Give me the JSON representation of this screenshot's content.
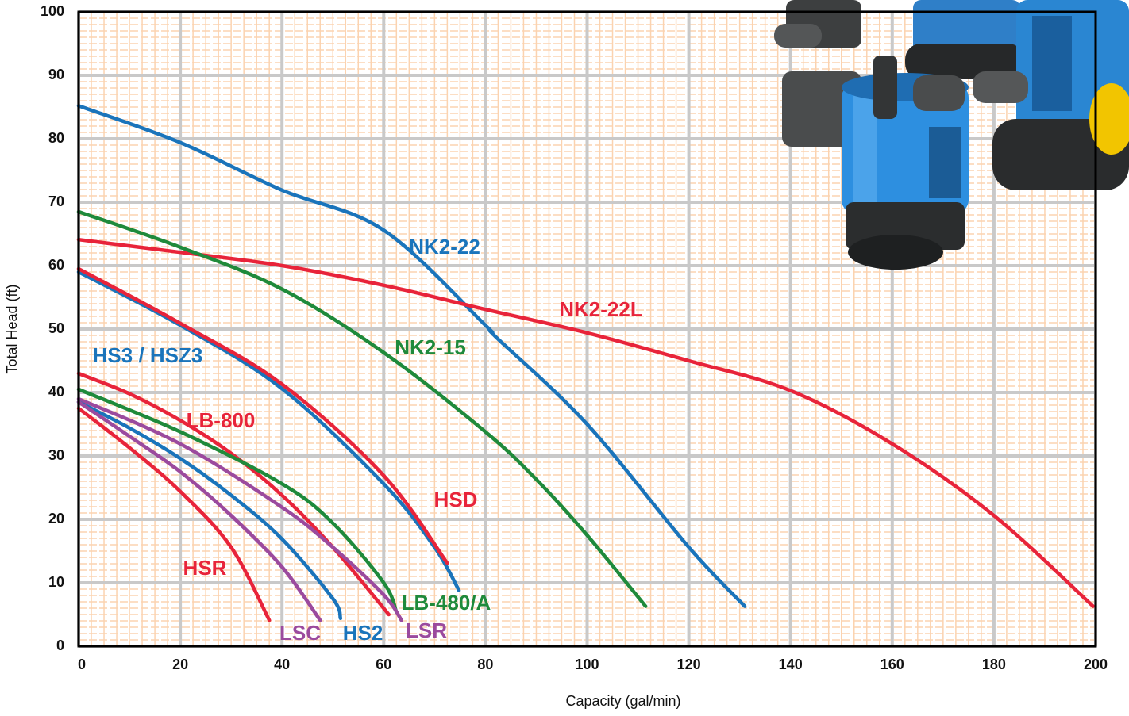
{
  "chart_data": {
    "type": "line",
    "x_label": "Capacity (gal/min)",
    "y_label": "Total Head (ft)",
    "xlim": [
      0,
      200
    ],
    "ylim": [
      0,
      100
    ],
    "xticks": [
      0,
      20,
      40,
      60,
      80,
      100,
      120,
      140,
      160,
      180,
      200
    ],
    "yticks": [
      0,
      10,
      20,
      30,
      40,
      50,
      60,
      70,
      80,
      90,
      100
    ],
    "grid": true,
    "series": [
      {
        "name": "NK2-22",
        "color": "#1a74bb",
        "x": [
          0,
          20,
          40,
          60,
          80,
          82,
          100,
          120,
          131
        ],
        "values": [
          85.2,
          79.4,
          71.9,
          65.6,
          50.6,
          48.8,
          35,
          15.6,
          6.3
        ]
      },
      {
        "name": "NK2-22L",
        "color": "#e8243a",
        "x": [
          0,
          20,
          40,
          60,
          80,
          100,
          120,
          140,
          160,
          180,
          199.5
        ],
        "values": [
          64.1,
          62.1,
          60,
          56.9,
          53.1,
          49.4,
          45,
          40.3,
          31.9,
          20.6,
          6.3
        ]
      },
      {
        "name": "NK2-15",
        "color": "#1f8a3b",
        "x": [
          0,
          20,
          40,
          60,
          80,
          90,
          100,
          111.5
        ],
        "values": [
          68.5,
          62.9,
          56.3,
          46.3,
          33.8,
          26.3,
          17.5,
          6.3
        ]
      },
      {
        "name": "HS3 / HSZ3",
        "color": "#1a74bb",
        "x": [
          0,
          20,
          40,
          60,
          70,
          74.8
        ],
        "values": [
          59,
          50.6,
          40.6,
          25.6,
          15.6,
          8.8
        ]
      },
      {
        "name": "LB-800",
        "color": "#e8243a",
        "x": [
          0,
          20,
          40,
          60,
          72.5
        ],
        "values": [
          59.5,
          50.9,
          41.3,
          26.9,
          13.1
        ]
      },
      {
        "name": "HSD",
        "color": "#e8243a",
        "x": [
          0,
          10,
          20,
          30,
          40,
          50,
          61
        ],
        "values": [
          43,
          39.8,
          35.6,
          30.4,
          23.8,
          15.6,
          5
        ]
      },
      {
        "name": "LB-480/A",
        "color": "#1f8a3b",
        "x": [
          0,
          20,
          40,
          50,
          60,
          62.5
        ],
        "values": [
          40.5,
          33.8,
          25.6,
          19.4,
          10,
          5.4
        ]
      },
      {
        "name": "LSR",
        "color": "#9b4a9e",
        "x": [
          0,
          20,
          40,
          50,
          60,
          63.5
        ],
        "values": [
          39,
          31.9,
          21.9,
          15.6,
          8.1,
          4.1
        ]
      },
      {
        "name": "HS2",
        "color": "#1a74bb",
        "x": [
          0,
          10,
          20,
          30,
          40,
          50,
          51.5
        ],
        "values": [
          38.5,
          34.4,
          29.6,
          23.8,
          16.9,
          7.5,
          4.4
        ]
      },
      {
        "name": "LSC",
        "color": "#9b4a9e",
        "x": [
          0,
          10,
          20,
          30,
          40,
          47.5
        ],
        "values": [
          38.5,
          33.1,
          27.5,
          20.6,
          12.5,
          4.1
        ]
      },
      {
        "name": "HSR",
        "color": "#e8243a",
        "x": [
          0,
          10,
          20,
          30,
          37.5
        ],
        "values": [
          37.5,
          31.3,
          24.4,
          15.6,
          4.1
        ]
      }
    ]
  }
}
